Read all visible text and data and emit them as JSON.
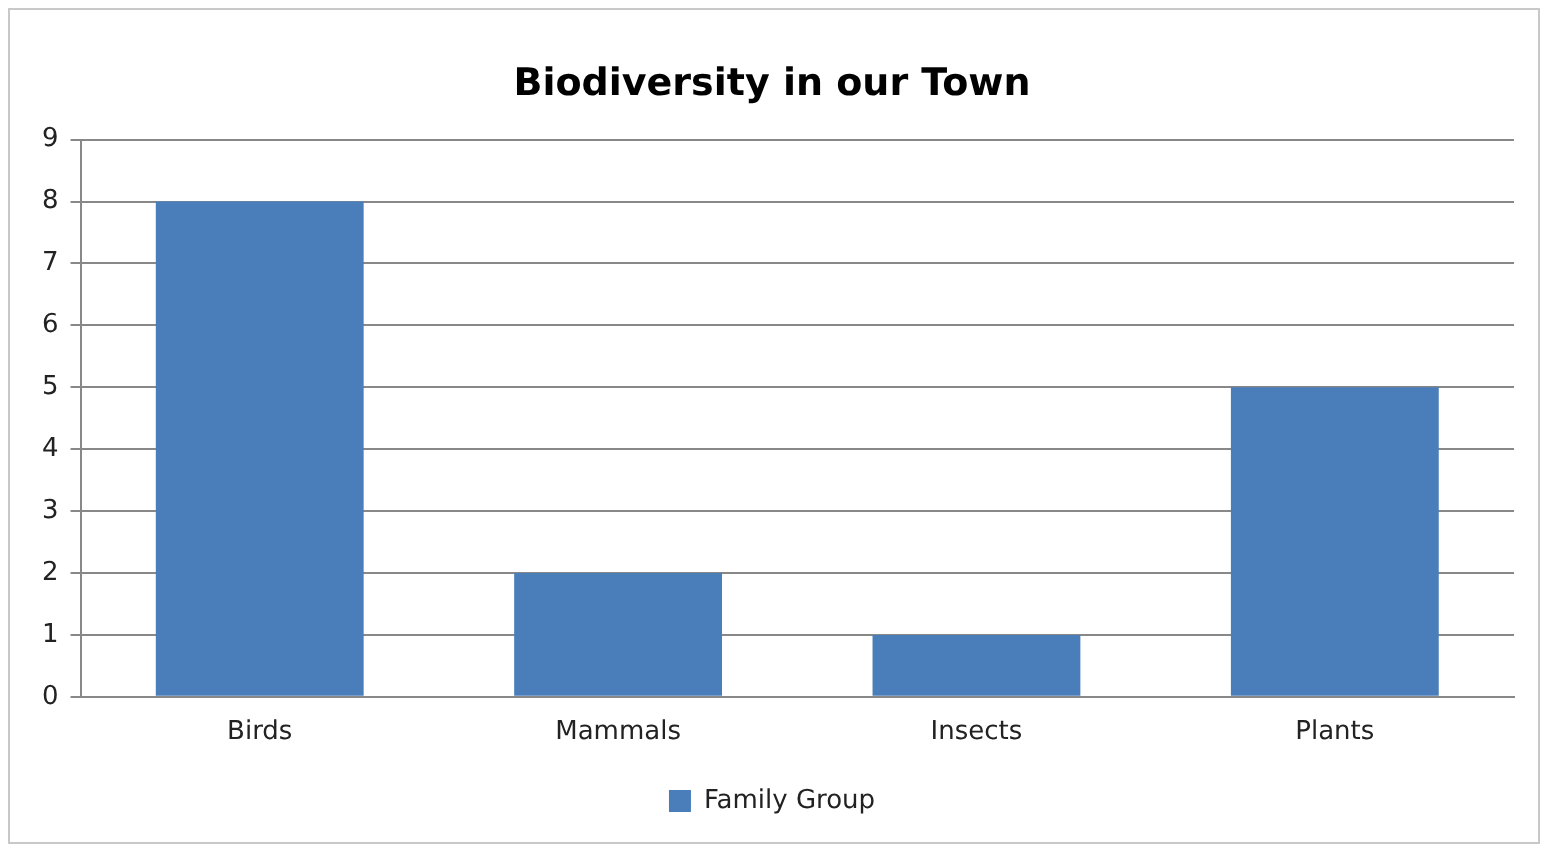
{
  "chart_data": {
    "type": "bar",
    "title": "Biodiversity in our Town",
    "categories": [
      "Birds",
      "Mammals",
      "Insects",
      "Plants"
    ],
    "series": [
      {
        "name": "Family Group",
        "color": "#4a7ebb",
        "values": [
          8,
          2,
          1,
          5
        ]
      }
    ],
    "ylim": [
      0,
      9
    ],
    "yticks": [
      0,
      1,
      2,
      3,
      4,
      5,
      6,
      7,
      8,
      9
    ],
    "grid": "y",
    "legend": "bottom"
  }
}
